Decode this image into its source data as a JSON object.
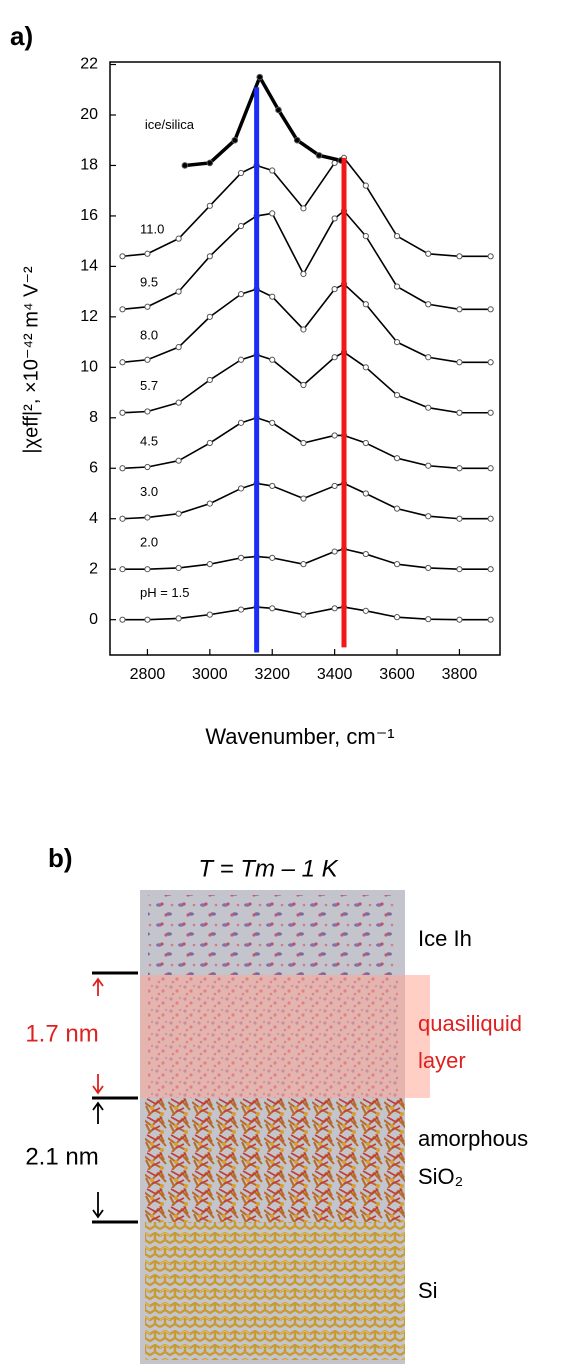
{
  "chart_data": {
    "type": "line",
    "panel_label": "a)",
    "x_label": "Wavenumber, cm⁻¹",
    "y_label": "|χeff|², ×10⁻⁴² m⁴ V⁻²",
    "xlim": [
      2680,
      3930
    ],
    "ylim": [
      -1.4,
      22.1
    ],
    "xticks": [
      2800,
      3000,
      3200,
      3400,
      3600,
      3800
    ],
    "yticks": [
      0,
      2,
      4,
      6,
      8,
      10,
      12,
      14,
      16,
      18,
      20,
      22
    ],
    "series": [
      {
        "name": "pH = 1.5",
        "color": "#000000",
        "x": [
          2720,
          2800,
          2900,
          3000,
          3100,
          3150,
          3200,
          3300,
          3400,
          3430,
          3500,
          3600,
          3700,
          3800,
          3900
        ],
        "values": [
          0,
          0,
          0.05,
          0.2,
          0.4,
          0.5,
          0.45,
          0.2,
          0.45,
          0.5,
          0.35,
          0.1,
          0.02,
          0,
          0
        ]
      },
      {
        "name": "2.0",
        "color": "#000000",
        "x": [
          2720,
          2800,
          2900,
          3000,
          3100,
          3150,
          3200,
          3300,
          3400,
          3430,
          3500,
          3600,
          3700,
          3800,
          3900
        ],
        "values": [
          2.0,
          2.0,
          2.05,
          2.2,
          2.45,
          2.5,
          2.45,
          2.2,
          2.7,
          2.8,
          2.6,
          2.2,
          2.05,
          2.0,
          2.0
        ]
      },
      {
        "name": "3.0",
        "color": "#000000",
        "x": [
          2720,
          2800,
          2900,
          3000,
          3100,
          3150,
          3200,
          3300,
          3400,
          3430,
          3500,
          3600,
          3700,
          3800,
          3900
        ],
        "values": [
          4.0,
          4.05,
          4.2,
          4.6,
          5.2,
          5.4,
          5.3,
          4.8,
          5.3,
          5.4,
          5.0,
          4.4,
          4.1,
          4.0,
          4.0
        ]
      },
      {
        "name": "4.5",
        "color": "#000000",
        "x": [
          2720,
          2800,
          2900,
          3000,
          3100,
          3150,
          3200,
          3300,
          3400,
          3430,
          3500,
          3600,
          3700,
          3800,
          3900
        ],
        "values": [
          6.0,
          6.05,
          6.3,
          7.0,
          7.8,
          8.0,
          7.8,
          7.0,
          7.3,
          7.3,
          7.0,
          6.4,
          6.1,
          6.0,
          6.0
        ]
      },
      {
        "name": "5.7",
        "color": "#000000",
        "x": [
          2720,
          2800,
          2900,
          3000,
          3100,
          3150,
          3200,
          3300,
          3400,
          3430,
          3500,
          3600,
          3700,
          3800,
          3900
        ],
        "values": [
          8.2,
          8.25,
          8.6,
          9.5,
          10.3,
          10.5,
          10.3,
          9.3,
          10.4,
          10.6,
          10.0,
          8.9,
          8.4,
          8.2,
          8.2
        ]
      },
      {
        "name": "8.0",
        "color": "#000000",
        "x": [
          2720,
          2800,
          2900,
          3000,
          3100,
          3150,
          3200,
          3300,
          3400,
          3430,
          3500,
          3600,
          3700,
          3800,
          3900
        ],
        "values": [
          10.2,
          10.3,
          10.8,
          12.0,
          12.9,
          13.1,
          12.8,
          11.5,
          13.1,
          13.3,
          12.5,
          11.0,
          10.4,
          10.2,
          10.2
        ]
      },
      {
        "name": "9.5",
        "color": "#000000",
        "x": [
          2720,
          2800,
          2900,
          3000,
          3100,
          3150,
          3200,
          3300,
          3400,
          3430,
          3500,
          3600,
          3700,
          3800,
          3900
        ],
        "values": [
          12.3,
          12.4,
          13.0,
          14.4,
          15.6,
          16.0,
          16.1,
          13.7,
          15.9,
          16.2,
          15.2,
          13.2,
          12.5,
          12.3,
          12.3
        ]
      },
      {
        "name": "11.0",
        "color": "#000000",
        "x": [
          2720,
          2800,
          2900,
          3000,
          3100,
          3150,
          3200,
          3300,
          3400,
          3430,
          3500,
          3600,
          3700,
          3800,
          3900
        ],
        "values": [
          14.4,
          14.5,
          15.1,
          16.4,
          17.7,
          18.0,
          17.8,
          16.3,
          18.1,
          18.3,
          17.2,
          15.2,
          14.5,
          14.4,
          14.4
        ]
      },
      {
        "name": "ice/silica",
        "color": "#000000",
        "x": [
          2920,
          3000,
          3080,
          3160,
          3220,
          3280,
          3350,
          3420
        ],
        "values": [
          18.0,
          18.1,
          19.0,
          21.5,
          20.2,
          19.0,
          18.4,
          18.2
        ]
      }
    ],
    "reference_lines": [
      {
        "x": 3150,
        "color": "#1a2cf5",
        "y": [
          -1.3,
          21.1
        ]
      },
      {
        "x": 3430,
        "color": "#f01818",
        "y": [
          -1.1,
          18.3
        ]
      }
    ]
  },
  "diagram": {
    "panel_label": "b)",
    "condition": "T = Tm – 1 K",
    "layers": [
      "Ice Ih",
      "quasiliquid",
      "layer",
      "amorphous",
      "SiO₂",
      "Si"
    ],
    "dimensions": [
      "1.7 nm",
      "2.1 nm"
    ]
  }
}
